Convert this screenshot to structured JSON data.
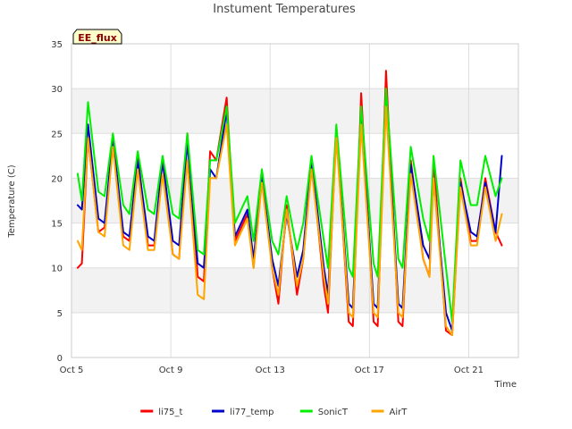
{
  "chart_data": {
    "type": "line",
    "title": "Instument Temperatures",
    "xlabel": "Time",
    "ylabel": "Temperature (C)",
    "annotation": "EE_flux",
    "ylim": [
      0,
      35
    ],
    "yticks": [
      0,
      5,
      10,
      15,
      20,
      25,
      30,
      35
    ],
    "xlim": [
      "2024-10-05",
      "2024-10-23"
    ],
    "xticks": [
      {
        "date": "2024-10-05",
        "label": "Oct 5"
      },
      {
        "date": "2024-10-09",
        "label": "Oct 9"
      },
      {
        "date": "2024-10-13",
        "label": "Oct 13"
      },
      {
        "date": "2024-10-17",
        "label": "Oct 17"
      },
      {
        "date": "2024-10-21",
        "label": "Oct 21"
      }
    ],
    "grid": true,
    "legend_position": "bottom-center",
    "series": [
      {
        "name": "li75_t",
        "color": "#ff0000",
        "x": [
          "2024-10-05T06:00",
          "2024-10-05T10:00",
          "2024-10-05T16:00",
          "2024-10-06T02:00",
          "2024-10-06T08:00",
          "2024-10-06T16:00",
          "2024-10-07T02:00",
          "2024-10-07T08:00",
          "2024-10-07T16:00",
          "2024-10-08T02:00",
          "2024-10-08T08:00",
          "2024-10-08T16:00",
          "2024-10-09T02:00",
          "2024-10-09T08:00",
          "2024-10-09T16:00",
          "2024-10-10T02:00",
          "2024-10-10T08:00",
          "2024-10-10T14:00",
          "2024-10-10T20:00",
          "2024-10-11T06:00",
          "2024-10-11T14:00",
          "2024-10-12T02:00",
          "2024-10-12T08:00",
          "2024-10-12T16:00",
          "2024-10-13T02:00",
          "2024-10-13T08:00",
          "2024-10-13T16:00",
          "2024-10-14T02:00",
          "2024-10-14T08:00",
          "2024-10-14T16:00",
          "2024-10-15T04:00",
          "2024-10-15T08:00",
          "2024-10-15T16:00",
          "2024-10-16T04:00",
          "2024-10-16T08:00",
          "2024-10-16T16:00",
          "2024-10-17T04:00",
          "2024-10-17T08:00",
          "2024-10-17T16:00",
          "2024-10-18T04:00",
          "2024-10-18T08:00",
          "2024-10-18T16:00",
          "2024-10-19T04:00",
          "2024-10-19T10:00",
          "2024-10-19T14:00",
          "2024-10-20T02:00",
          "2024-10-20T08:00",
          "2024-10-20T16:00",
          "2024-10-21T02:00",
          "2024-10-21T08:00",
          "2024-10-21T16:00",
          "2024-10-22T02:00",
          "2024-10-22T08:00"
        ],
        "values": [
          10,
          10.5,
          24.5,
          14,
          14.5,
          24,
          13.5,
          13,
          22.5,
          12.5,
          12.5,
          22,
          11.5,
          11,
          25,
          9,
          8.5,
          23,
          22,
          29,
          13,
          16,
          10,
          20.5,
          10,
          6,
          17,
          7,
          11,
          22,
          8,
          5,
          25.5,
          4,
          3.5,
          29.5,
          4,
          3.5,
          32,
          4,
          3.5,
          22,
          11,
          9,
          22,
          3,
          2.5,
          20,
          13,
          13,
          20,
          14,
          12.5
        ]
      },
      {
        "name": "li77_temp",
        "color": "#0000cc",
        "x": [
          "2024-10-05T06:00",
          "2024-10-05T10:00",
          "2024-10-05T16:00",
          "2024-10-06T02:00",
          "2024-10-06T08:00",
          "2024-10-06T16:00",
          "2024-10-07T02:00",
          "2024-10-07T08:00",
          "2024-10-07T16:00",
          "2024-10-08T02:00",
          "2024-10-08T08:00",
          "2024-10-08T16:00",
          "2024-10-09T02:00",
          "2024-10-09T08:00",
          "2024-10-09T16:00",
          "2024-10-10T02:00",
          "2024-10-10T08:00",
          "2024-10-10T14:00",
          "2024-10-10T20:00",
          "2024-10-11T06:00",
          "2024-10-11T14:00",
          "2024-10-12T02:00",
          "2024-10-12T08:00",
          "2024-10-12T16:00",
          "2024-10-13T02:00",
          "2024-10-13T08:00",
          "2024-10-13T16:00",
          "2024-10-14T02:00",
          "2024-10-14T08:00",
          "2024-10-14T16:00",
          "2024-10-15T04:00",
          "2024-10-15T08:00",
          "2024-10-15T16:00",
          "2024-10-16T04:00",
          "2024-10-16T08:00",
          "2024-10-16T16:00",
          "2024-10-17T04:00",
          "2024-10-17T08:00",
          "2024-10-17T16:00",
          "2024-10-18T04:00",
          "2024-10-18T08:00",
          "2024-10-18T16:00",
          "2024-10-19T04:00",
          "2024-10-19T10:00",
          "2024-10-19T14:00",
          "2024-10-20T02:00",
          "2024-10-20T08:00",
          "2024-10-20T16:00",
          "2024-10-21T02:00",
          "2024-10-21T08:00",
          "2024-10-21T16:00",
          "2024-10-22T02:00",
          "2024-10-22T08:00"
        ],
        "values": [
          17,
          16.5,
          26,
          15.5,
          15,
          24.5,
          14,
          13.5,
          22,
          13.5,
          13,
          22,
          13,
          12.5,
          24,
          10.5,
          10,
          21,
          20,
          27.5,
          13.5,
          16.5,
          11,
          20,
          11,
          8,
          16,
          9,
          12,
          22,
          10,
          7,
          25,
          6,
          5.5,
          27,
          6,
          5.5,
          29,
          6,
          5.5,
          21.5,
          12.5,
          11,
          20,
          5,
          3,
          19.5,
          14,
          13.5,
          19.5,
          14,
          22.5
        ]
      },
      {
        "name": "SonicT",
        "color": "#00ee00",
        "x": [
          "2024-10-05T06:00",
          "2024-10-05T10:00",
          "2024-10-05T16:00",
          "2024-10-06T02:00",
          "2024-10-06T08:00",
          "2024-10-06T16:00",
          "2024-10-07T02:00",
          "2024-10-07T08:00",
          "2024-10-07T16:00",
          "2024-10-08T02:00",
          "2024-10-08T08:00",
          "2024-10-08T16:00",
          "2024-10-09T02:00",
          "2024-10-09T08:00",
          "2024-10-09T16:00",
          "2024-10-10T02:00",
          "2024-10-10T08:00",
          "2024-10-10T14:00",
          "2024-10-10T20:00",
          "2024-10-11T06:00",
          "2024-10-11T14:00",
          "2024-10-12T02:00",
          "2024-10-12T08:00",
          "2024-10-12T16:00",
          "2024-10-13T02:00",
          "2024-10-13T08:00",
          "2024-10-13T16:00",
          "2024-10-14T02:00",
          "2024-10-14T08:00",
          "2024-10-14T16:00",
          "2024-10-15T04:00",
          "2024-10-15T08:00",
          "2024-10-15T16:00",
          "2024-10-16T04:00",
          "2024-10-16T08:00",
          "2024-10-16T16:00",
          "2024-10-17T04:00",
          "2024-10-17T08:00",
          "2024-10-17T16:00",
          "2024-10-18T04:00",
          "2024-10-18T08:00",
          "2024-10-18T16:00",
          "2024-10-19T04:00",
          "2024-10-19T10:00",
          "2024-10-19T14:00",
          "2024-10-20T02:00",
          "2024-10-20T08:00",
          "2024-10-20T16:00",
          "2024-10-21T02:00",
          "2024-10-21T08:00",
          "2024-10-21T16:00",
          "2024-10-22T02:00",
          "2024-10-22T08:00"
        ],
        "values": [
          20.5,
          17.5,
          28.5,
          18.5,
          18,
          25,
          17,
          16,
          23,
          16.5,
          16,
          22.5,
          16,
          15.5,
          25,
          12,
          11.5,
          22,
          22,
          28,
          15,
          18,
          13,
          21,
          13,
          11.5,
          18,
          12,
          15,
          22.5,
          13,
          10,
          26,
          10,
          9,
          28,
          10.5,
          9,
          30,
          11,
          10,
          23.5,
          15.5,
          13,
          22.5,
          10,
          4,
          22,
          17,
          17,
          22.5,
          18,
          20
        ]
      },
      {
        "name": "AirT",
        "color": "#ffa500",
        "x": [
          "2024-10-05T06:00",
          "2024-10-05T10:00",
          "2024-10-05T16:00",
          "2024-10-06T02:00",
          "2024-10-06T08:00",
          "2024-10-06T16:00",
          "2024-10-07T02:00",
          "2024-10-07T08:00",
          "2024-10-07T16:00",
          "2024-10-08T02:00",
          "2024-10-08T08:00",
          "2024-10-08T16:00",
          "2024-10-09T02:00",
          "2024-10-09T08:00",
          "2024-10-09T16:00",
          "2024-10-10T02:00",
          "2024-10-10T08:00",
          "2024-10-10T14:00",
          "2024-10-10T20:00",
          "2024-10-11T06:00",
          "2024-10-11T14:00",
          "2024-10-12T02:00",
          "2024-10-12T08:00",
          "2024-10-12T16:00",
          "2024-10-13T02:00",
          "2024-10-13T08:00",
          "2024-10-13T16:00",
          "2024-10-14T02:00",
          "2024-10-14T08:00",
          "2024-10-14T16:00",
          "2024-10-15T04:00",
          "2024-10-15T08:00",
          "2024-10-15T16:00",
          "2024-10-16T04:00",
          "2024-10-16T08:00",
          "2024-10-16T16:00",
          "2024-10-17T04:00",
          "2024-10-17T08:00",
          "2024-10-17T16:00",
          "2024-10-18T04:00",
          "2024-10-18T08:00",
          "2024-10-18T16:00",
          "2024-10-19T04:00",
          "2024-10-19T10:00",
          "2024-10-19T14:00",
          "2024-10-20T02:00",
          "2024-10-20T08:00",
          "2024-10-20T16:00",
          "2024-10-21T02:00",
          "2024-10-21T08:00",
          "2024-10-21T16:00",
          "2024-10-22T02:00",
          "2024-10-22T08:00"
        ],
        "values": [
          13,
          12,
          24.5,
          14,
          13.5,
          23.5,
          12.5,
          12,
          21,
          12,
          12,
          20.5,
          11.5,
          11,
          22,
          7,
          6.5,
          20,
          20,
          26,
          12.5,
          15.5,
          10,
          19.5,
          10,
          7,
          16.5,
          8,
          11,
          21,
          9,
          6,
          24.5,
          5,
          4.5,
          26,
          5,
          4.5,
          28,
          5,
          4.5,
          20.5,
          11,
          9,
          20,
          3.5,
          2.5,
          19,
          12.5,
          12.5,
          19,
          13,
          16
        ]
      }
    ]
  }
}
